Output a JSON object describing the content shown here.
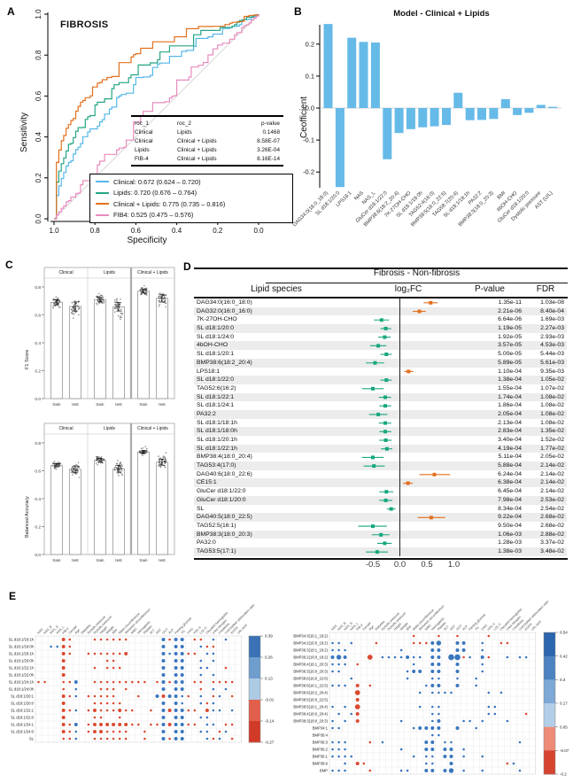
{
  "panel_labels": {
    "A": "A",
    "B": "B",
    "C": "C",
    "D": "D",
    "E": "E"
  },
  "chart_data": [
    {
      "id": "roc",
      "type": "line",
      "title": "FIBROSIS",
      "xlabel": "Specificity",
      "ylabel": "Sensitivity",
      "xticks": [
        "1.0",
        "0.8",
        "0.6",
        "0.4",
        "0.2",
        "0.0"
      ],
      "yticks": [
        "0.0",
        "0.2",
        "0.4",
        "0.6",
        "0.8",
        "1.0"
      ],
      "diagonal_color": "#cfcfcf",
      "series": [
        {
          "name": "Clinical",
          "auc": 0.672,
          "text": "Clinical: 0.672 (0.624 – 0.720)",
          "color": "#56B8E8"
        },
        {
          "name": "Lipids",
          "auc": 0.72,
          "text": "Lipids: 0.720 (0.676 – 0.764)",
          "color": "#23A583"
        },
        {
          "name": "Clinical + Lipids",
          "auc": 0.775,
          "text": "Clinical + Lipids: 0.775 (0.735 – 0.816)",
          "color": "#E2701E"
        },
        {
          "name": "FIB4",
          "auc": 0.525,
          "text": "FIB4: 0.525 (0.475 – 0.576)",
          "color": "#E98BBE"
        }
      ],
      "table": {
        "headers": [
          "roc_1",
          "roc_2",
          "p-value"
        ],
        "rows": [
          [
            "Clinical",
            "Lipids",
            "0.1468"
          ],
          [
            "Clinical",
            "Clinical + Lipids",
            "8.58E-07"
          ],
          [
            "Lipids",
            "Clinical + Lipids",
            "3.26E-04"
          ],
          [
            "FIB-4",
            "Clinical + Lipids",
            "8.16E-14"
          ]
        ]
      }
    },
    {
      "id": "coefficients",
      "type": "bar",
      "title": "Model - Clinical + Lipids",
      "ylabel": "Ceofficient",
      "yticks": [
        -0.2,
        -0.1,
        0.0,
        0.1,
        0.2
      ],
      "ylim": [
        -0.27,
        0.29
      ],
      "bar_color": "#66BAE8",
      "categories": [
        "DAG34:0(16:0_18:0)",
        "SL d18:1/20:0",
        "LPS18:1",
        "NAS",
        "NAS_L",
        "GluCer d18:1/22:0",
        "BMP38:6(18:2_20:4)",
        "7K-27OH-CHO",
        "SL d18:1/18:0h",
        "TAG52:4(16:0)",
        "BMP38:5(16:0_22:5)",
        "TAG58:7(20:4)",
        "SL d18:1/18:1h",
        "PA32:2",
        "BMP38:3(18:0_20:3)",
        "BMI",
        "4bOH-CHO",
        "GluCer d18:1/20:0",
        "Dystolic pressure",
        "AST (U/L)"
      ],
      "values": [
        0.263,
        -0.247,
        0.22,
        0.207,
        0.205,
        -0.16,
        -0.078,
        -0.066,
        -0.06,
        -0.057,
        -0.053,
        0.048,
        -0.038,
        -0.037,
        -0.034,
        0.028,
        -0.022,
        -0.015,
        0.01,
        0.004
      ]
    },
    {
      "id": "f1",
      "type": "bar",
      "ylabel": "F1 Score",
      "facets": [
        "Clinical",
        "Lipids",
        "Clinical + Lipids"
      ],
      "groups": [
        "train",
        "test"
      ],
      "yticks": [
        0.0,
        0.2,
        0.4,
        0.6,
        0.8
      ],
      "ylim": [
        0,
        0.85
      ],
      "values": [
        [
          0.69,
          0.66
        ],
        [
          0.71,
          0.658
        ],
        [
          0.77,
          0.718
        ]
      ],
      "errors": [
        [
          0.018,
          0.032
        ],
        [
          0.015,
          0.03
        ],
        [
          0.013,
          0.026
        ]
      ]
    },
    {
      "id": "balanced_accuracy",
      "type": "bar",
      "ylabel": "Balanced Accuracy",
      "facets": [
        "Clinical",
        "Lipids",
        "Clinical + Lipids"
      ],
      "groups": [
        "train",
        "test"
      ],
      "yticks": [
        0.0,
        0.2,
        0.4,
        0.6,
        0.8
      ],
      "ylim": [
        0,
        0.85
      ],
      "values": [
        [
          0.64,
          0.61
        ],
        [
          0.676,
          0.614
        ],
        [
          0.735,
          0.662
        ]
      ],
      "errors": [
        [
          0.012,
          0.025
        ],
        [
          0.013,
          0.024
        ],
        [
          0.011,
          0.022
        ]
      ]
    },
    {
      "id": "forest",
      "type": "scatter",
      "title": "Fibrosis - Non-fibrosis",
      "columns": [
        "Lipid species",
        "log₂FC",
        "P-value",
        "FDR"
      ],
      "xticks": [
        "-0.5",
        "0.0",
        "0.5",
        "1.0"
      ],
      "xtick_vals": [
        -0.5,
        0.0,
        0.5,
        1.0
      ],
      "colors": {
        "up": "#E2701E",
        "down": "#17A77E"
      },
      "rows": [
        [
          "DAG34:0(16:0_18:0)",
          0.57,
          0.44,
          0.7,
          "up",
          "1.35e-11",
          "1.03e-08"
        ],
        [
          "DAG32:0(16:0_16:0)",
          0.36,
          0.24,
          0.48,
          "up",
          "2.21e-06",
          "8.40e-04"
        ],
        [
          "7K-27OH-CHO",
          -0.34,
          -0.48,
          -0.2,
          "down",
          "6.64e-06",
          "1.69e-03"
        ],
        [
          "SL d18:1/20:0",
          -0.26,
          -0.36,
          -0.16,
          "down",
          "1.19e-05",
          "2.27e-03"
        ],
        [
          "SL d18:1/24:0",
          -0.28,
          -0.4,
          -0.17,
          "down",
          "1.92e-05",
          "2.93e-03"
        ],
        [
          "4bOH-CHO",
          -0.4,
          -0.55,
          -0.25,
          "down",
          "3.57e-05",
          "4.53e-03"
        ],
        [
          "SL d18:1/20:1",
          -0.25,
          -0.36,
          -0.15,
          "down",
          "5.00e-05",
          "5.44e-03"
        ],
        [
          "BMP38:6(18:2_20:4)",
          -0.46,
          -0.63,
          -0.29,
          "down",
          "5.89e-05",
          "5.61e-03"
        ],
        [
          "LPS18:1",
          0.16,
          0.08,
          0.25,
          "up",
          "1.10e-04",
          "9.35e-03"
        ],
        [
          "SL d18:1/22:0",
          -0.25,
          -0.36,
          -0.15,
          "down",
          "1.38e-04",
          "1.05e-02"
        ],
        [
          "TAG52:6(16:2)",
          -0.5,
          -0.7,
          -0.3,
          "down",
          "1.55e-04",
          "1.07e-02"
        ],
        [
          "SL d18:1/22:1",
          -0.27,
          -0.39,
          -0.16,
          "down",
          "1.74e-04",
          "1.08e-02"
        ],
        [
          "SL d18:1/24:1",
          -0.27,
          -0.38,
          -0.16,
          "down",
          "1.86e-04",
          "1.08e-02"
        ],
        [
          "PA32:2",
          -0.4,
          -0.57,
          -0.23,
          "down",
          "2.05e-04",
          "1.08e-02"
        ],
        [
          "SL d18:1/18:1h",
          -0.27,
          -0.39,
          -0.16,
          "down",
          "2.13e-04",
          "1.08e-02"
        ],
        [
          "SL d18:1/18:0h",
          -0.27,
          -0.38,
          -0.16,
          "down",
          "2.83e-04",
          "1.35e-02"
        ],
        [
          "SL d18:1/20:1h",
          -0.26,
          -0.38,
          -0.15,
          "down",
          "3.40e-04",
          "1.52e-02"
        ],
        [
          "SL d18:1/22:1h",
          -0.24,
          -0.35,
          -0.14,
          "down",
          "4.19e-04",
          "1.77e-02"
        ],
        [
          "BMP38:4(18:0_20:4)",
          -0.5,
          -0.7,
          -0.3,
          "down",
          "5.11e-04",
          "2.05e-02"
        ],
        [
          "TAG53:4(17:0)",
          -0.48,
          -0.67,
          -0.28,
          "down",
          "5.88e-04",
          "2.14e-02"
        ],
        [
          "DAG40:6(18:0_22:6)",
          0.64,
          0.36,
          0.93,
          "up",
          "6.24e-04",
          "2.14e-02"
        ],
        [
          "CE15:1",
          0.15,
          0.06,
          0.24,
          "up",
          "6.38e-04",
          "2.14e-02"
        ],
        [
          "GluCer d18:1/22:0",
          -0.25,
          -0.38,
          -0.12,
          "down",
          "6.45e-04",
          "2.14e-02"
        ],
        [
          "GluCer d18:1/20:0",
          -0.26,
          -0.38,
          -0.14,
          "down",
          "7.98e-04",
          "2.53e-02"
        ],
        [
          "SL",
          -0.16,
          -0.24,
          -0.08,
          "down",
          "8.34e-04",
          "2.54e-02"
        ],
        [
          "DAG40:5(18:0_22:5)",
          0.58,
          0.33,
          0.84,
          "up",
          "9.22e-04",
          "2.68e-02"
        ],
        [
          "TAG52:5(16:1)",
          -0.5,
          -0.77,
          -0.24,
          "down",
          "9.50e-04",
          "2.68e-02"
        ],
        [
          "BMP38:3(18:0_20:3)",
          -0.35,
          -0.52,
          -0.19,
          "down",
          "1.06e-03",
          "2.88e-02"
        ],
        [
          "PA32:0",
          -0.28,
          -0.42,
          -0.15,
          "down",
          "1.28e-03",
          "3.37e-02"
        ],
        [
          "TAG53:5(17:1)",
          -0.42,
          -0.63,
          -0.22,
          "down",
          "1.38e-03",
          "3.48e-02"
        ]
      ]
    },
    {
      "id": "corr_sl",
      "type": "heatmap",
      "dot_colors": {
        "pos": "#3B76BE",
        "neg": "#DC4A32"
      },
      "rows": [
        "SL d18:1/18:1h",
        "SL d18:1/18:0h",
        "SL d18:1/20:1h",
        "SL d18:1/20:0h",
        "SL d18:1/22:1h",
        "SL d18:1/22:0h",
        "SL d18:1/24:1h",
        "SL d18:1/24:0h",
        "SL d18:1/20:1",
        "SL d18:1/20:0",
        "SL d18:1/22:1",
        "SL d18:1/22:0",
        "SL d18:1/24:1",
        "SL d18:1/24:0",
        "SL"
      ],
      "cols": [
        "NAS",
        "NAS_B",
        "NAS_S",
        "NAS_L",
        "FIB-4",
        "Gender",
        "Age",
        "Diabetes",
        "Systolic pressure",
        "Dystolic pressure",
        "Height",
        "Weight",
        "BMI",
        "Waist circumference",
        "Abdomen circumference",
        "WBC",
        "Hemoglobin",
        "Platelet",
        "ALT",
        "AST",
        "GGT",
        "ALP",
        "Fasting glucose",
        "TG",
        "CHO",
        "HDL-C",
        "LDL-C",
        "Glycated hemoglobin",
        "Urea nitrogen",
        "Creatinine",
        "Liver/spleen attenuation ratio",
        "EGFR",
        "Uric acid"
      ],
      "cells": [
        "....65...555555.....2522.55.1.1..",
        "..1165..............2.22..155....",
        "....65..5555556.....212255.11....",
        "....6......55.......2.22..1.1....",
        "....6....5.555......2.22..11..5..",
        "....6...............2.22..1.1....",
        "55..552..555555555.52522.55.5555.",
        "....5.1...555.5.....2.22..5.1.1..",
        "....651.55555...5..262215.1.51.5.",
        "....6....55555......2.21..151....",
        "....651.56555655..5.262255.611.1.",
        "....6....55..5......2.22..11.....",
        "....652.566666655.55262255.11.55.",
        "....651.5665555..5..2.22..11.51..",
        "....551..555555..5..2522...151.5."
      ],
      "colorbar": {
        "labels": [
          "0.39",
          "0.26",
          "0.13",
          "-0.01",
          "-0.14",
          "-0.27"
        ],
        "colors": [
          "#3A72B5",
          "#6E9DCE",
          "#AECBE6",
          "#E2604B",
          "#D23A28"
        ]
      }
    },
    {
      "id": "corr_bmp",
      "type": "heatmap",
      "dot_colors": {
        "pos": "#3B76BE",
        "neg": "#DC4A32"
      },
      "rows": [
        "BMP34:3(16:1_18:2)",
        "BMP34:2(16:0_18:2)",
        "BMP36:3(18:1_18:2)",
        "BMP36:2(18:0_18:2)",
        "BMP36:4(16:1_20:3)",
        "BMP36:3(16:0_20:3)",
        "BMP38:6(16:0_22:6)",
        "BMP38:6(16:1_22:5)",
        "BMP38:6(18:2_20:4)",
        "BMP38:5(16:0_22:5)",
        "BMP38:5(18:1_20:4)",
        "BMP38:4(18:0_20:4)",
        "BMP38:3(18:0_20:3)",
        "BMP34:1",
        "BMP36:4",
        "BMP36:3",
        "BMP36:2",
        "BMP36:1",
        "BMP38:6",
        "BMP"
      ],
      "cols": [
        "NAS",
        "NAS_B",
        "NAS_S",
        "NAS_L",
        "FIB-4",
        "Gender",
        "Age",
        "Diabetes",
        "Systolic pressure",
        "Dystolic pressure",
        "Height",
        "Weight",
        "BMI",
        "Waist circumference",
        "Abdomen circumference",
        "WBC",
        "Hemoglobin",
        "Platelet",
        "ALT",
        "AST",
        "GGT",
        "ALP",
        "Fasting glucose",
        "TG",
        "CHO",
        "HDL-C",
        "LDL-C",
        "Glycated hemoglobin",
        "Urea nitrogen",
        "Creatinine",
        "Liver/spleen attenuation ratio",
        "EGFR",
        "Uric acid"
      ],
      "cells": [
        ".............5...5..5....5.......",
        "11.1...5.....55523..22..1..55....",
        "111........1....22..22..1........",
        "232...7.1111211.22.4451.25..1.11.",
        "111.5........1..22..2...1........",
        "11..........122.22..2...1........",
        "...1........1...11..1..1.........",
        "111.6.5........122..2..1.........",
        "....7.........1.1111.....1.1.....",
        "....6............................",
        "1.1.7.........1.11.......11......",
        ".1.16...........11.......11....5.",
        "1.1.6......1....12...11.1...1....",
        "11...........12222..2..1.........",
        "................11...............",
        "111...5.1......22.11..........1..",
        "111........1...22.22.1...........",
        "1111.........1.11.22.1..1........",
        "..1.65.........11..2........51...",
        "111...5....11..22.23.1..1.....1.."
      ],
      "colorbar": {
        "labels": [
          "0.54",
          "0.42",
          "0.3",
          "0.17",
          "0.05",
          "-0.07",
          "-0.2"
        ],
        "colors": [
          "#2C66AE",
          "#4E83C1",
          "#7EA8D5",
          "#B3CEE8",
          "#ED8B77",
          "#D64430"
        ]
      }
    }
  ]
}
